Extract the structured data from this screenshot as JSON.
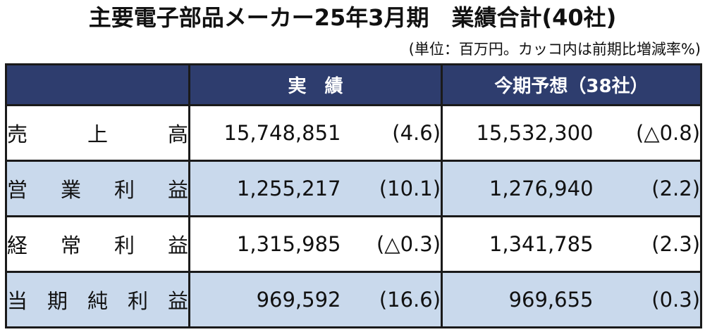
{
  "title": "主要電子部品メーカー25年3月期　業績合計(40社)",
  "unit_note": "(単位：百万円。カッコ内は前期比増減率%)",
  "table": {
    "headers": {
      "actual": "実　績",
      "forecast": "今期予想（38社）"
    },
    "rows": [
      {
        "label_chars": [
          "売",
          "上",
          "高"
        ],
        "actual_value": "15,748,851",
        "actual_pct": "(4.6)",
        "forecast_value": "15,532,300",
        "forecast_pct": "(△0.8)"
      },
      {
        "label_chars": [
          "営",
          "業",
          "利",
          "益"
        ],
        "actual_value": "1,255,217",
        "actual_pct": "(10.1)",
        "forecast_value": "1,276,940",
        "forecast_pct": "(2.2)"
      },
      {
        "label_chars": [
          "経",
          "常",
          "利",
          "益"
        ],
        "actual_value": "1,315,985",
        "actual_pct": "(△0.3)",
        "forecast_value": "1,341,785",
        "forecast_pct": "(2.3)"
      },
      {
        "label_chars": [
          "当",
          "期",
          "純",
          "利",
          "益"
        ],
        "actual_value": "969,592",
        "actual_pct": "(16.6)",
        "forecast_value": "969,655",
        "forecast_pct": "(0.3)"
      }
    ]
  },
  "colors": {
    "header_bg": "#2e3d6e",
    "alt_row_bg": "#c9d9ec"
  }
}
